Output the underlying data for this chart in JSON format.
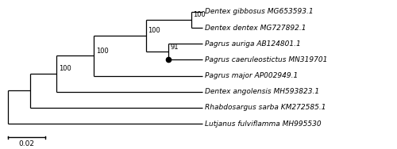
{
  "taxa": [
    "Dentex gibbosus MG653593.1",
    "Dentex dentex MG727892.1",
    "Pagrus auriga AB124801.1",
    "Pagrus caeruleostictus MN319701",
    "Pagrus major AP002949.1",
    "Dentex angolensis MH593823.1",
    "Rhabdosargus sarba KM272585.1",
    "Lutjanus fulviflamma MH995530"
  ],
  "background_color": "#ffffff",
  "line_color": "#000000",
  "text_color": "#000000",
  "font_size": 6.5,
  "bootstrap_font_size": 6.0,
  "scale_bar_label": "0.02"
}
